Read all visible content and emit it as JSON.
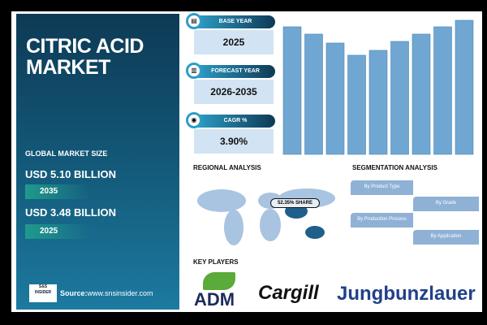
{
  "title": "CITRIC ACID MARKET",
  "global_market_size_label": "GLOBAL MARKET SIZE",
  "market_values": [
    {
      "value": "USD 5.10 BILLION",
      "year": "2035"
    },
    {
      "value": "USD 3.48 BILLION",
      "year": "2025"
    }
  ],
  "source": {
    "label": "Source:",
    "url": "www.snsinsider.com",
    "logo_text": "S&S INSIDER Strategy & Stats"
  },
  "info_cards": [
    {
      "label": "BASE YEAR",
      "value": "2025",
      "icon": "document-icon"
    },
    {
      "label": "FORECAST YEAR",
      "value": "2026-2035",
      "icon": "chart-icon"
    },
    {
      "label": "CAGR %",
      "value": "3.90%",
      "icon": "growth-icon"
    }
  ],
  "regional": {
    "heading": "REGIONAL ANALYSIS",
    "callout": "52.35% SHARE"
  },
  "segmentation": {
    "heading": "SEGMENTATION ANALYSIS",
    "items": [
      "By Product Type",
      "By Grade",
      "By Production Process",
      "By Application"
    ]
  },
  "key_players": {
    "heading": "KEY PLAYERS",
    "items": [
      "ADM",
      "Cargill",
      "Jungbunzlauer"
    ]
  },
  "colors": {
    "bar": "#6fa7d2",
    "panel": "#135878",
    "accent": "#2d9ec7",
    "map": "#a9c4e0",
    "map_highlight": "#1f5f8a"
  },
  "chart_data": {
    "type": "bar",
    "values": [
      157,
      148,
      137,
      122,
      128,
      139,
      148,
      157,
      165
    ],
    "grid": false,
    "title": "",
    "xlabel": "",
    "ylabel": ""
  }
}
